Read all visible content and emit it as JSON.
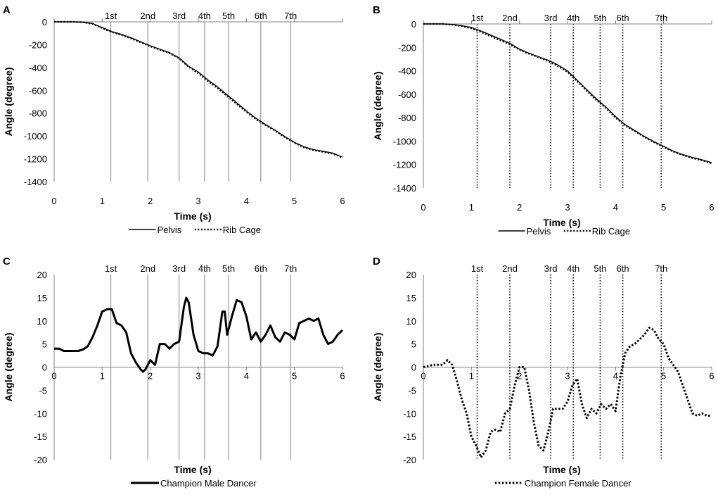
{
  "chart_data": [
    {
      "panel": "A",
      "type": "line",
      "xlabel": "Time (s)",
      "ylabel": "Angle (degree)",
      "xlim": [
        0,
        6
      ],
      "ylim": [
        -1400,
        0
      ],
      "xticks": [
        "0",
        "1",
        "2",
        "3",
        "4",
        "5",
        "6"
      ],
      "yticks": [
        "0",
        "-200",
        "-400",
        "-600",
        "-800",
        "-1000",
        "-1200",
        "-1400"
      ],
      "turn_markers": {
        "labels": [
          "1st",
          "2nd",
          "3rd",
          "4th",
          "5th",
          "6th",
          "7th"
        ],
        "x": [
          1.18,
          1.95,
          2.6,
          3.13,
          3.63,
          4.3,
          4.92
        ],
        "style": "solid"
      },
      "series": [
        {
          "name": "Pelvis",
          "style": "solid",
          "x": [
            0,
            0.2,
            0.4,
            0.6,
            0.8,
            1.0,
            1.2,
            1.4,
            1.6,
            1.8,
            2.0,
            2.2,
            2.4,
            2.6,
            2.8,
            3.0,
            3.2,
            3.4,
            3.6,
            3.8,
            4.0,
            4.2,
            4.4,
            4.6,
            4.8,
            5.0,
            5.2,
            5.4,
            5.6,
            5.8,
            6.0
          ],
          "y": [
            0,
            0,
            0,
            -3,
            -15,
            -50,
            -85,
            -110,
            -140,
            -175,
            -210,
            -240,
            -270,
            -315,
            -390,
            -440,
            -510,
            -570,
            -640,
            -710,
            -780,
            -845,
            -900,
            -950,
            -1005,
            -1055,
            -1095,
            -1120,
            -1135,
            -1150,
            -1185
          ]
        },
        {
          "name": "Rib Cage",
          "style": "dotted",
          "x": [
            0,
            0.2,
            0.4,
            0.6,
            0.8,
            1.0,
            1.2,
            1.4,
            1.6,
            1.8,
            2.0,
            2.2,
            2.4,
            2.6,
            2.8,
            3.0,
            3.2,
            3.4,
            3.6,
            3.8,
            4.0,
            4.2,
            4.4,
            4.6,
            4.8,
            5.0,
            5.2,
            5.4,
            5.6,
            5.8,
            6.0
          ],
          "y": [
            0,
            0,
            0,
            -4,
            -18,
            -55,
            -90,
            -115,
            -145,
            -180,
            -215,
            -245,
            -275,
            -320,
            -395,
            -450,
            -520,
            -580,
            -650,
            -720,
            -790,
            -855,
            -905,
            -955,
            -1010,
            -1060,
            -1100,
            -1125,
            -1140,
            -1155,
            -1190
          ]
        }
      ]
    },
    {
      "panel": "B",
      "type": "line",
      "xlabel": "Time (s)",
      "ylabel": "Angle (degree)",
      "xlim": [
        0,
        6
      ],
      "ylim": [
        -1400,
        0
      ],
      "xticks": [
        "0",
        "1",
        "2",
        "3",
        "4",
        "5",
        "6"
      ],
      "yticks": [
        "0",
        "-200",
        "-400",
        "-600",
        "-800",
        "-1000",
        "-1200",
        "-1400"
      ],
      "turn_markers": {
        "labels": [
          "1st",
          "2nd",
          "3rd",
          "4th",
          "5th",
          "6th",
          "7th"
        ],
        "x": [
          1.12,
          1.8,
          2.65,
          3.12,
          3.68,
          4.15,
          4.95
        ],
        "style": "dotted"
      },
      "series": [
        {
          "name": "Pelvis",
          "style": "solid",
          "x": [
            0,
            0.2,
            0.4,
            0.6,
            0.8,
            1.0,
            1.2,
            1.4,
            1.6,
            1.8,
            2.0,
            2.2,
            2.4,
            2.6,
            2.8,
            3.0,
            3.2,
            3.4,
            3.6,
            3.8,
            4.0,
            4.2,
            4.4,
            4.6,
            4.8,
            5.0,
            5.2,
            5.4,
            5.6,
            5.8,
            6.0
          ],
          "y": [
            0,
            0,
            0,
            -5,
            -15,
            -30,
            -60,
            -95,
            -130,
            -165,
            -215,
            -250,
            -280,
            -310,
            -350,
            -400,
            -480,
            -560,
            -640,
            -710,
            -790,
            -860,
            -910,
            -960,
            -1005,
            -1045,
            -1085,
            -1115,
            -1140,
            -1160,
            -1185
          ]
        },
        {
          "name": "Rib Cage",
          "style": "dotted",
          "x": [
            0,
            0.2,
            0.4,
            0.6,
            0.8,
            1.0,
            1.2,
            1.4,
            1.6,
            1.8,
            2.0,
            2.2,
            2.4,
            2.6,
            2.8,
            3.0,
            3.2,
            3.4,
            3.6,
            3.8,
            4.0,
            4.2,
            4.4,
            4.6,
            4.8,
            5.0,
            5.2,
            5.4,
            5.6,
            5.8,
            6.0
          ],
          "y": [
            0,
            0,
            0,
            -6,
            -18,
            -38,
            -70,
            -105,
            -140,
            -175,
            -220,
            -255,
            -285,
            -318,
            -360,
            -410,
            -490,
            -570,
            -650,
            -720,
            -800,
            -868,
            -915,
            -965,
            -1010,
            -1050,
            -1090,
            -1120,
            -1145,
            -1165,
            -1190
          ]
        }
      ]
    },
    {
      "panel": "C",
      "type": "line",
      "xlabel": "Time (s)",
      "ylabel": "Angle (degree)",
      "xlim": [
        0,
        6
      ],
      "ylim": [
        -20,
        20
      ],
      "xticks": [
        "0",
        "1",
        "2",
        "3",
        "4",
        "5",
        "6"
      ],
      "yticks": [
        "20",
        "15",
        "10",
        "5",
        "0",
        "-5",
        "-10",
        "-15",
        "-20"
      ],
      "turn_markers": {
        "labels": [
          "1st",
          "2nd",
          "3rd",
          "4th",
          "5th",
          "6th",
          "7th"
        ],
        "x": [
          1.18,
          1.95,
          2.6,
          3.13,
          3.63,
          4.3,
          4.92
        ],
        "style": "solid"
      },
      "series": [
        {
          "name": "Champion Male Dancer",
          "style": "thick-solid",
          "x": [
            0,
            0.1,
            0.2,
            0.3,
            0.4,
            0.5,
            0.6,
            0.7,
            0.8,
            0.9,
            1.0,
            1.1,
            1.2,
            1.3,
            1.4,
            1.5,
            1.6,
            1.7,
            1.8,
            1.85,
            1.9,
            2.0,
            2.1,
            2.2,
            2.3,
            2.4,
            2.5,
            2.6,
            2.7,
            2.75,
            2.8,
            2.9,
            3.0,
            3.1,
            3.2,
            3.3,
            3.4,
            3.5,
            3.55,
            3.6,
            3.7,
            3.8,
            3.9,
            4.0,
            4.1,
            4.2,
            4.3,
            4.4,
            4.5,
            4.6,
            4.7,
            4.8,
            4.9,
            5.0,
            5.1,
            5.2,
            5.3,
            5.4,
            5.5,
            5.6,
            5.7,
            5.8,
            5.9,
            6.0
          ],
          "y": [
            4,
            4,
            3.5,
            3.5,
            3.5,
            3.5,
            3.8,
            4.5,
            6.5,
            9,
            12,
            12.5,
            12.5,
            9.5,
            9,
            7.5,
            3,
            1,
            -0.5,
            -1,
            -0.5,
            1.5,
            0.5,
            5,
            5,
            4,
            5,
            5.5,
            13,
            15,
            14,
            7,
            3.5,
            3,
            3,
            2.5,
            4.5,
            12,
            12,
            7,
            11,
            14.5,
            14,
            11,
            6,
            7.5,
            5.5,
            7,
            9,
            6.5,
            5.5,
            7.5,
            7,
            6,
            9.5,
            10,
            10.5,
            10,
            10.5,
            7,
            5,
            5.5,
            7,
            8
          ]
        }
      ]
    },
    {
      "panel": "D",
      "type": "line",
      "xlabel": "Time (s)",
      "ylabel": "Angle (degree)",
      "xlim": [
        0,
        6
      ],
      "ylim": [
        -20,
        20
      ],
      "xticks": [
        "0",
        "1",
        "2",
        "3",
        "4",
        "5",
        "6"
      ],
      "yticks": [
        "20",
        "15",
        "10",
        "5",
        "0",
        "-5",
        "-10",
        "-15",
        "-20"
      ],
      "turn_markers": {
        "labels": [
          "1st",
          "2nd",
          "3rd",
          "4th",
          "5th",
          "6th",
          "7th"
        ],
        "x": [
          1.12,
          1.8,
          2.65,
          3.12,
          3.68,
          4.15,
          4.95
        ],
        "style": "dotted"
      },
      "series": [
        {
          "name": "Champion Female Dancer",
          "style": "thick-dotted",
          "x": [
            0,
            0.1,
            0.2,
            0.3,
            0.4,
            0.5,
            0.6,
            0.7,
            0.8,
            0.9,
            1.0,
            1.1,
            1.2,
            1.3,
            1.4,
            1.5,
            1.6,
            1.7,
            1.8,
            1.9,
            2.0,
            2.1,
            2.2,
            2.3,
            2.4,
            2.5,
            2.6,
            2.7,
            2.8,
            2.9,
            3.0,
            3.1,
            3.2,
            3.3,
            3.4,
            3.5,
            3.6,
            3.7,
            3.8,
            3.9,
            4.0,
            4.1,
            4.2,
            4.3,
            4.4,
            4.5,
            4.6,
            4.7,
            4.8,
            4.9,
            5.0,
            5.1,
            5.2,
            5.3,
            5.4,
            5.5,
            5.6,
            5.7,
            5.8,
            5.9,
            6.0
          ],
          "y": [
            0,
            0.2,
            0.5,
            0.5,
            0.5,
            1.5,
            0.5,
            -3,
            -7,
            -10,
            -15,
            -17,
            -19.5,
            -18,
            -14,
            -13.5,
            -14,
            -10,
            -9,
            -4,
            0,
            0,
            -5,
            -12,
            -17,
            -18,
            -14,
            -9,
            -9,
            -9,
            -7.5,
            -4,
            -2.5,
            -8,
            -11,
            -9,
            -10,
            -8,
            -9,
            -8,
            -9.5,
            -2,
            3,
            4.5,
            5,
            6,
            7,
            8.5,
            8,
            6,
            5,
            2,
            0.5,
            -1,
            -4,
            -7,
            -10,
            -10.5,
            -10,
            -10.5,
            -10.5
          ]
        }
      ]
    }
  ]
}
